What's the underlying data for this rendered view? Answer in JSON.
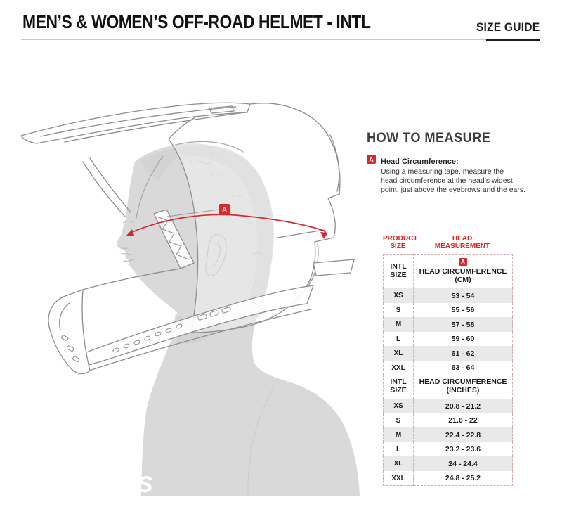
{
  "page": {
    "title": "MEN’S & WOMEN’S OFF-ROAD HELMET - INTL",
    "size_guide_label": "SIZE GUIDE"
  },
  "how_to_measure": {
    "heading": "HOW TO MEASURE",
    "marker": "A",
    "label": "Head Circumference:",
    "lines": [
      "Using a measuring tape, measure the",
      "head circumference at the head’s widest",
      "point, just above the eyebrows and the ears."
    ]
  },
  "illustration": {
    "marker": "A",
    "shirt_logo": "S"
  },
  "size_table": {
    "column_headers": {
      "col1": [
        "PRODUCT",
        "SIZE"
      ],
      "col2": [
        "HEAD",
        "MEASUREMENT"
      ]
    },
    "marker": "A",
    "sections": [
      {
        "size_header": [
          "INTL",
          "SIZE"
        ],
        "measurement_header": [
          "HEAD CIRCUMFERENCE",
          "(CM)"
        ],
        "show_marker": true,
        "rows": [
          [
            "XS",
            "53 - 54"
          ],
          [
            "S",
            "55 - 56"
          ],
          [
            "M",
            "57 - 58"
          ],
          [
            "L",
            "59 - 60"
          ],
          [
            "XL",
            "61 - 62"
          ],
          [
            "XXL",
            "63 - 64"
          ]
        ]
      },
      {
        "size_header": [
          "INTL",
          "SIZE"
        ],
        "measurement_header": [
          "HEAD CIRCUMFERENCE",
          "(INCHES)"
        ],
        "show_marker": false,
        "rows": [
          [
            "XS",
            "20.8 - 21.2"
          ],
          [
            "S",
            "21.6 - 22"
          ],
          [
            "M",
            "22.4 - 22.8"
          ],
          [
            "L",
            "23.2 - 23.6"
          ],
          [
            "XL",
            "24 - 24.4"
          ],
          [
            "XXL",
            "24.8 - 25.2"
          ]
        ]
      }
    ]
  },
  "colors": {
    "accent_red": "#D8282D",
    "row_gray": "#E9E9E9",
    "line_gray": "#8D8D8D"
  }
}
